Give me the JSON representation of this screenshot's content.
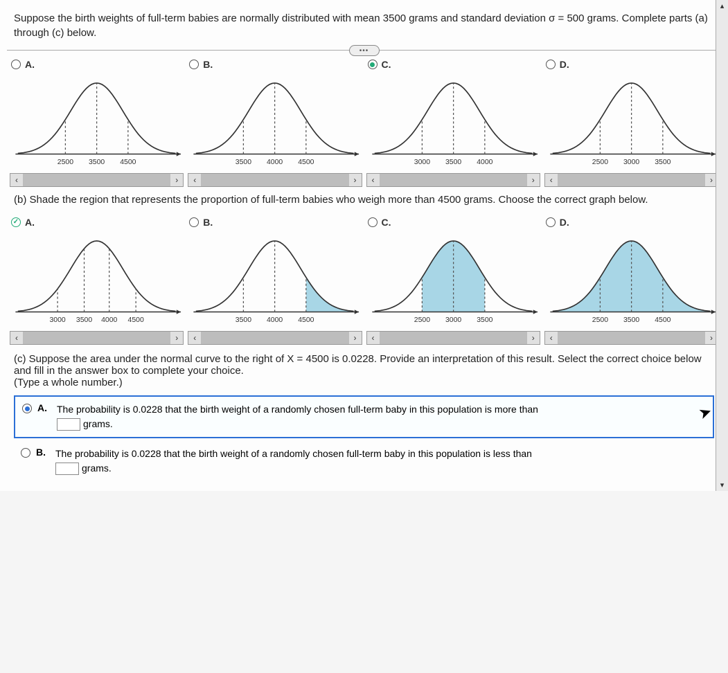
{
  "intro": "Suppose the birth weights of full-term babies are normally distributed with mean 3500 grams and standard deviation σ = 500 grams. Complete parts (a) through (c) below.",
  "part_a": {
    "options": [
      {
        "letter": "A.",
        "state": "unselected",
        "ticks": [
          "2500",
          "3500",
          "4500"
        ],
        "shade": "none"
      },
      {
        "letter": "B.",
        "state": "unselected",
        "ticks": [
          "3500",
          "4000",
          "4500"
        ],
        "shade": "none"
      },
      {
        "letter": "C.",
        "state": "selected",
        "ticks": [
          "3000",
          "3500",
          "4000"
        ],
        "shade": "none"
      },
      {
        "letter": "D.",
        "state": "unselected",
        "ticks": [
          "2500",
          "3000",
          "3500"
        ],
        "shade": "none"
      }
    ]
  },
  "part_b": {
    "prompt": "(b) Shade the region that represents the proportion of full-term babies who weigh more than 4500 grams. Choose the correct graph below.",
    "options": [
      {
        "letter": "A.",
        "state": "checked",
        "ticks": [
          "3000",
          "3500",
          "4000",
          "4500"
        ],
        "shade": "none"
      },
      {
        "letter": "B.",
        "state": "unselected",
        "ticks": [
          "3500",
          "4000",
          "4500"
        ],
        "shade": "right"
      },
      {
        "letter": "C.",
        "state": "unselected",
        "ticks": [
          "2500",
          "3000",
          "3500"
        ],
        "shade": "center"
      },
      {
        "letter": "D.",
        "state": "unselected",
        "ticks": [
          "2500",
          "3500",
          "4500"
        ],
        "shade": "full"
      }
    ]
  },
  "part_c": {
    "prompt": "(c) Suppose the area under the normal curve to the right of X = 4500 is 0.0228. Provide an interpretation of this result. Select the correct choice below and fill in the answer box to complete your choice.",
    "hint": "(Type a whole number.)",
    "choices": [
      {
        "letter": "A.",
        "selected": true,
        "pre": "The probability is 0.0228 that the birth weight of a randomly chosen full-term baby in this population is more than",
        "post": "grams."
      },
      {
        "letter": "B.",
        "selected": false,
        "pre": "The probability is 0.0228 that the birth weight of a randomly chosen full-term baby in this population is less than",
        "post": "grams."
      }
    ]
  },
  "style": {
    "curve_stroke": "#333333",
    "curve_fill_shade": "#a8d6e6",
    "dash_color": "#555555",
    "tick_font_size": 10,
    "accent_blue": "#2b6fd6"
  }
}
